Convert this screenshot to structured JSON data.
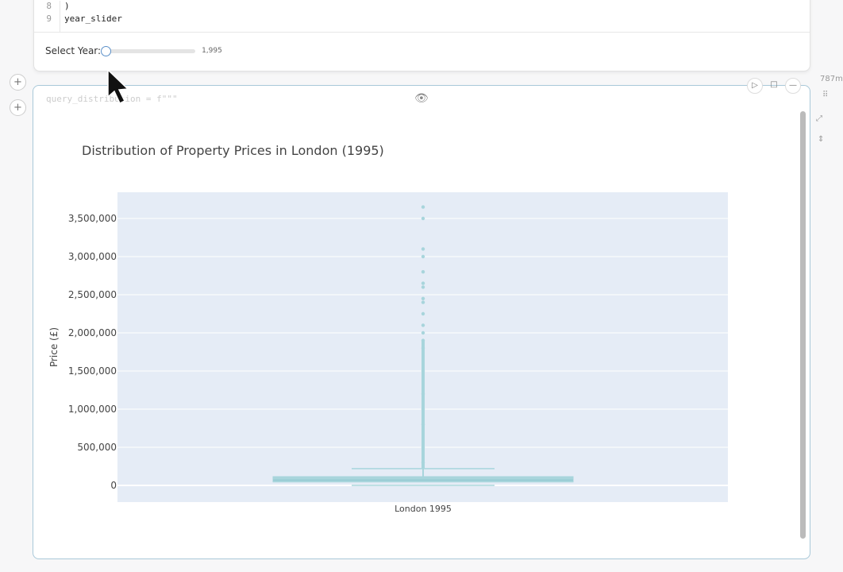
{
  "code_cell": {
    "lines": [
      {
        "n": "8",
        "text": ")"
      },
      {
        "n": "9",
        "text": "year_slider"
      }
    ]
  },
  "slider": {
    "label": "Select Year:",
    "value": "1,995",
    "fraction": 0
  },
  "chart_cell": {
    "code_preview": "query_distribution = f\"\"\"",
    "memory": "787m"
  },
  "chart_data": {
    "type": "box",
    "title": "Distribution of Property Prices in London (1995)",
    "xlabel": "",
    "ylabel": "Price (£)",
    "categories": [
      "London 1995"
    ],
    "ylim": [
      -200000,
      3850000
    ],
    "yticks": [
      0,
      500000,
      1000000,
      1500000,
      2000000,
      2500000,
      3000000,
      3500000
    ],
    "ytick_labels": [
      "0",
      "500,000",
      "1,000,000",
      "1,500,000",
      "2,000,000",
      "2,500,000",
      "3,000,000",
      "3,500,000"
    ],
    "box": {
      "min": 0,
      "q1": 45000,
      "median": 70000,
      "q3": 115000,
      "upper_whisker": 220000
    },
    "outliers": [
      300000,
      500000,
      800000,
      1000000,
      1200000,
      1500000,
      1800000,
      1900000,
      2000000,
      2100000,
      2250000,
      2400000,
      2450000,
      2600000,
      2650000,
      2800000,
      3000000,
      3100000,
      3500000,
      3650000
    ],
    "grid": true,
    "color": "#a8d5dc",
    "plot_bg": "#e5ecf6"
  }
}
